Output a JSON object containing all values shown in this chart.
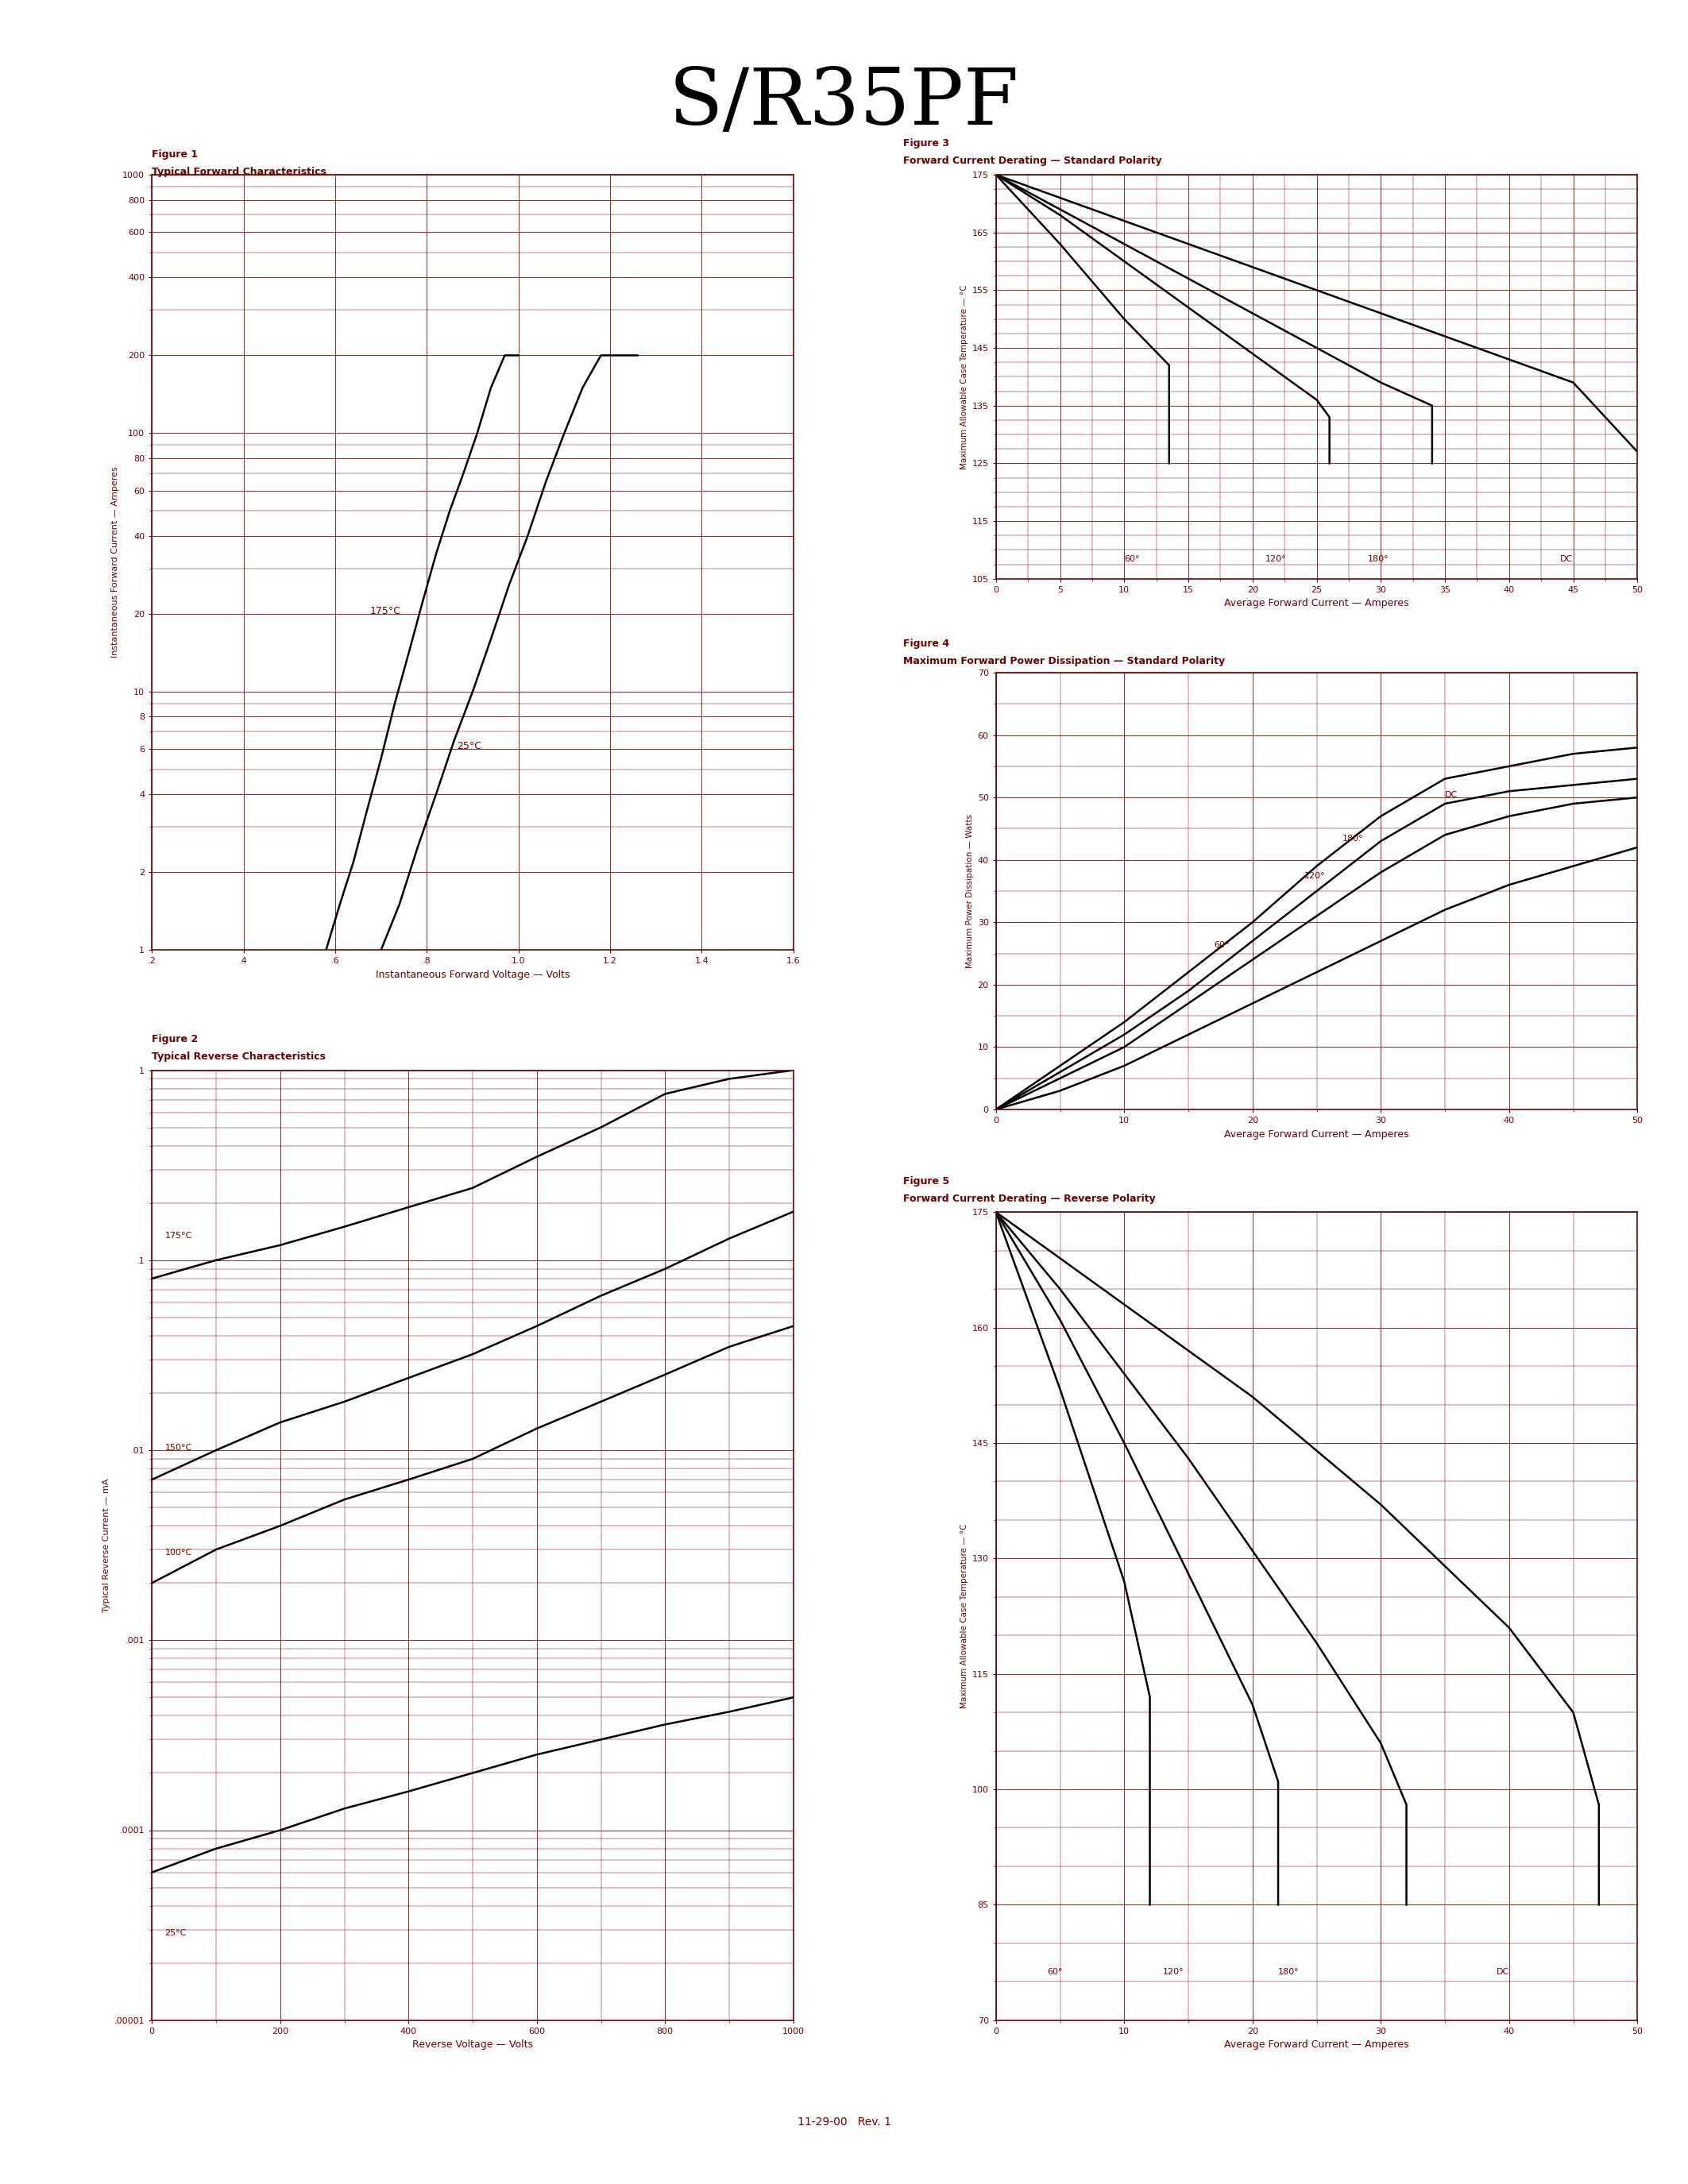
{
  "title": "S/R35PF",
  "title_font": 72,
  "dark_red": "#6B0000",
  "bg_color": "#FFFFFF",
  "grid_color": "#8B0000",
  "curve_color": "#000000",
  "fig1_title": "Figure 1",
  "fig1_subtitle": "Typical Forward Characteristics",
  "fig1_xlabel": "Instantaneous Forward Voltage — Volts",
  "fig1_ylabel": "Instantaneous Forward Current — Amperes",
  "fig2_title": "Figure 2",
  "fig2_subtitle": "Typical Reverse Characteristics",
  "fig2_xlabel": "Reverse Voltage — Volts",
  "fig2_ylabel": "Typical Reverse Current — mA",
  "fig3_title": "Figure 3",
  "fig3_subtitle": "Forward Current Derating — Standard Polarity",
  "fig3_xlabel": "Average Forward Current — Amperes",
  "fig3_ylabel": "Maximum Allowable Case Temperature — °C",
  "fig4_title": "Figure 4",
  "fig4_subtitle": "Maximum Forward Power Dissipation — Standard Polarity",
  "fig4_xlabel": "Average Forward Current — Amperes",
  "fig4_ylabel": "Maximum Power Dissipation — Watts",
  "fig5_title": "Figure 5",
  "fig5_subtitle": "Forward Current Derating — Reverse Polarity",
  "fig5_xlabel": "Average Forward Current — Amperes",
  "fig5_ylabel": "Maximum Allowable Case Temperature — °C",
  "footer": "11-29-00   Rev. 1",
  "fig1_v175": [
    0.58,
    0.61,
    0.64,
    0.67,
    0.7,
    0.73,
    0.76,
    0.79,
    0.82,
    0.85,
    0.88,
    0.91,
    0.94,
    0.97,
    1.0
  ],
  "fig1_i175": [
    1.0,
    1.5,
    2.2,
    3.5,
    5.5,
    9.0,
    14,
    22,
    34,
    50,
    70,
    100,
    150,
    200,
    200
  ],
  "fig1_v25": [
    0.7,
    0.74,
    0.78,
    0.82,
    0.86,
    0.9,
    0.94,
    0.98,
    1.02,
    1.06,
    1.1,
    1.14,
    1.18,
    1.22,
    1.26
  ],
  "fig1_i25": [
    1.0,
    1.5,
    2.5,
    4.0,
    6.5,
    10,
    16,
    26,
    40,
    65,
    100,
    150,
    200,
    200,
    200
  ],
  "fig2_vr": [
    0,
    100,
    200,
    300,
    400,
    500,
    600,
    700,
    800,
    900,
    1000
  ],
  "fig2_ir175": [
    0.08,
    0.1,
    0.12,
    0.15,
    0.19,
    0.24,
    0.35,
    0.5,
    0.75,
    0.9,
    1.0
  ],
  "fig2_ir150": [
    0.007,
    0.01,
    0.014,
    0.018,
    0.024,
    0.032,
    0.045,
    0.065,
    0.09,
    0.13,
    0.18
  ],
  "fig2_ir100": [
    0.002,
    0.003,
    0.004,
    0.0055,
    0.007,
    0.009,
    0.013,
    0.018,
    0.025,
    0.035,
    0.045
  ],
  "fig2_ir25": [
    6e-05,
    8e-05,
    0.0001,
    0.00013,
    0.00016,
    0.0002,
    0.00025,
    0.0003,
    0.00036,
    0.00042,
    0.0005
  ],
  "fig3_x60": [
    0,
    5,
    10,
    13.5,
    13.5
  ],
  "fig3_y60": [
    175,
    163,
    150,
    142,
    125
  ],
  "fig3_x120": [
    0,
    5,
    10,
    15,
    20,
    25,
    26,
    26
  ],
  "fig3_y120": [
    175,
    168,
    160,
    152,
    144,
    136,
    133,
    125
  ],
  "fig3_x180": [
    0,
    5,
    10,
    15,
    20,
    25,
    30,
    34,
    34
  ],
  "fig3_y180": [
    175,
    169,
    163,
    157,
    151,
    145,
    139,
    135,
    125
  ],
  "fig3_xDC": [
    0,
    5,
    10,
    15,
    20,
    25,
    30,
    35,
    40,
    45,
    50
  ],
  "fig3_yDC": [
    175,
    171,
    167,
    163,
    159,
    155,
    151,
    147,
    143,
    139,
    127
  ],
  "fig4_x60": [
    0,
    5,
    10,
    15,
    20,
    25,
    30,
    35,
    40,
    45,
    50
  ],
  "fig4_y60": [
    0,
    3,
    7,
    12,
    17,
    22,
    27,
    32,
    36,
    39,
    42
  ],
  "fig4_x120": [
    0,
    5,
    10,
    15,
    20,
    25,
    30,
    35,
    40,
    45,
    50
  ],
  "fig4_y120": [
    0,
    5,
    10,
    17,
    24,
    31,
    38,
    44,
    47,
    49,
    50
  ],
  "fig4_x180": [
    0,
    5,
    10,
    15,
    20,
    25,
    30,
    35,
    40,
    45,
    50
  ],
  "fig4_y180": [
    0,
    6,
    12,
    19,
    27,
    35,
    43,
    49,
    51,
    52,
    53
  ],
  "fig4_xDC": [
    0,
    5,
    10,
    15,
    20,
    25,
    30,
    35,
    40,
    45,
    50
  ],
  "fig4_yDC": [
    0,
    7,
    14,
    22,
    30,
    39,
    47,
    53,
    55,
    57,
    58
  ],
  "fig5_x60": [
    0,
    5,
    10,
    12,
    12
  ],
  "fig5_y60": [
    175,
    152,
    127,
    112,
    85
  ],
  "fig5_x120": [
    0,
    5,
    10,
    15,
    20,
    22,
    22
  ],
  "fig5_y120": [
    175,
    161,
    145,
    128,
    111,
    101,
    85
  ],
  "fig5_x180": [
    0,
    5,
    10,
    15,
    20,
    25,
    30,
    32,
    32
  ],
  "fig5_y180": [
    175,
    165,
    154,
    143,
    131,
    119,
    106,
    98,
    85
  ],
  "fig5_xDC": [
    0,
    5,
    10,
    15,
    20,
    25,
    30,
    35,
    40,
    45,
    47,
    47
  ],
  "fig5_yDC": [
    175,
    169,
    163,
    157,
    151,
    144,
    137,
    129,
    121,
    110,
    98,
    85
  ]
}
